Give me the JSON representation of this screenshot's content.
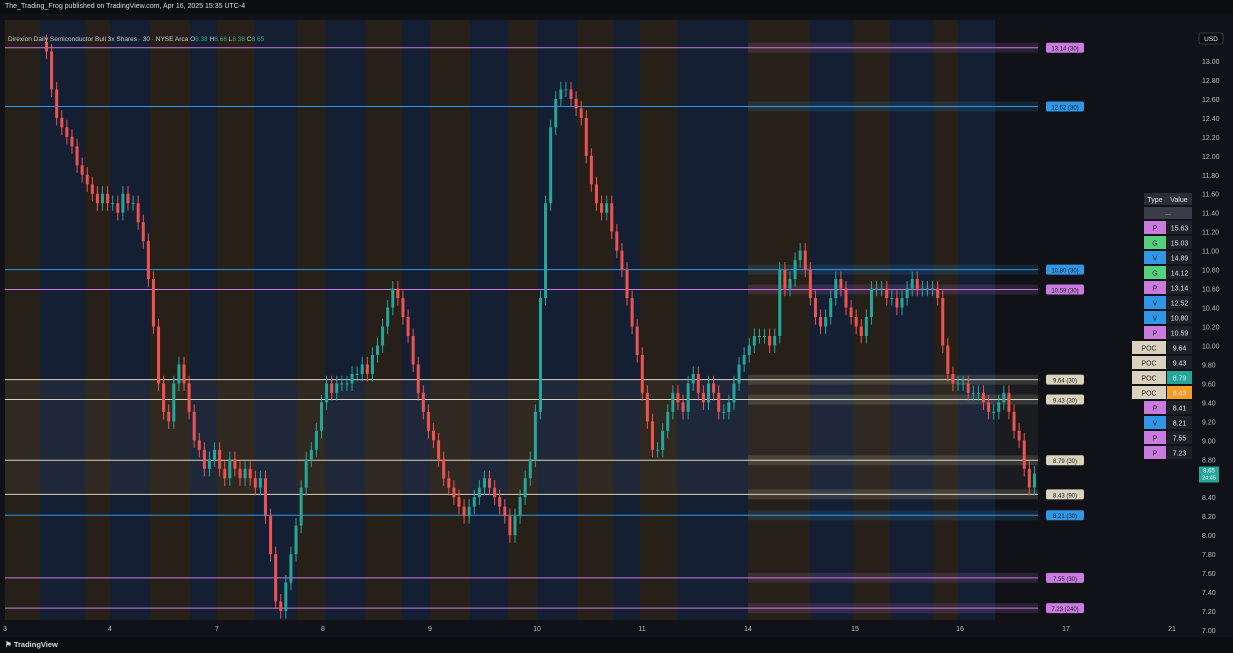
{
  "header": {
    "published": "The_Trading_Frog published on TradingView.com, Apr 16, 2025 15:35 UTC-4",
    "instrument": "Direxion Daily Semiconductor Bull 3x Shares · 30 · NYSE Arca",
    "ohlc": [
      {
        "k": "O",
        "v": "8.38"
      },
      {
        "k": "H",
        "v": "8.68"
      },
      {
        "k": "L",
        "v": "8.38"
      },
      {
        "k": "C",
        "v": "8.65"
      }
    ],
    "currency": "USD"
  },
  "footer": {
    "brand": "TradingView"
  },
  "colors": {
    "up": "#26a69a",
    "down": "#ef5350",
    "pivot": "#c97be0",
    "volume": "#2f97e6",
    "gap": "#55d07c",
    "poc": "#d9d3bd",
    "poc_hi_teal": "#26a69a",
    "poc_hi_orange": "#f59f26",
    "band_blue": "#1a2a4a",
    "band_orange": "#3a2c1c"
  },
  "chart_data": {
    "type": "candlestick",
    "y_axis": {
      "min": 7.0,
      "max": 13.2,
      "ticks": [
        "13.00",
        "12.80",
        "12.60",
        "12.40",
        "12.20",
        "12.00",
        "11.80",
        "11.60",
        "11.40",
        "11.20",
        "11.00",
        "10.80",
        "10.60",
        "10.40",
        "10.20",
        "10.00",
        "9.80",
        "9.60",
        "9.40",
        "9.20",
        "9.00",
        "8.80",
        "8.60",
        "8.40",
        "8.20",
        "8.00",
        "7.80",
        "7.60",
        "7.40",
        "7.20",
        "7.00"
      ]
    },
    "x_axis": {
      "ticks": [
        "3",
        "4",
        "7",
        "8",
        "9",
        "10",
        "11",
        "14",
        "15",
        "16",
        "17",
        "21"
      ]
    },
    "last_price": "8.65",
    "countdown": "24:45",
    "levels": [
      {
        "price": 13.14,
        "label": "13.14 (30)",
        "type": "P"
      },
      {
        "price": 12.52,
        "label": "12.52 (30)",
        "type": "V"
      },
      {
        "price": 10.8,
        "label": "10.80 (30)",
        "type": "V"
      },
      {
        "price": 10.59,
        "label": "10.59 (30)",
        "type": "P"
      },
      {
        "price": 9.64,
        "label": "9.64 (30)",
        "type": "POC"
      },
      {
        "price": 9.43,
        "label": "9.43 (30)",
        "type": "POC"
      },
      {
        "price": 8.79,
        "label": "8.79 (30)",
        "type": "POC"
      },
      {
        "price": 8.43,
        "label": "8.43 (90)",
        "type": "POC"
      },
      {
        "price": 8.21,
        "label": "8.21 (30)",
        "type": "V"
      },
      {
        "price": 7.55,
        "label": "7.55 (30)",
        "type": "P"
      },
      {
        "price": 7.23,
        "label": "7.23 (240)",
        "type": "P"
      }
    ],
    "closes": [
      13.1,
      12.7,
      12.4,
      12.3,
      12.2,
      12.1,
      11.9,
      11.8,
      11.7,
      11.6,
      11.5,
      11.6,
      11.5,
      11.5,
      11.4,
      11.6,
      11.5,
      11.5,
      11.3,
      11.1,
      10.7,
      10.2,
      9.6,
      9.3,
      9.2,
      9.6,
      9.8,
      9.6,
      9.3,
      9.0,
      8.9,
      8.7,
      8.8,
      8.9,
      8.7,
      8.6,
      8.8,
      8.7,
      8.6,
      8.7,
      8.6,
      8.5,
      8.6,
      8.2,
      7.8,
      7.3,
      7.2,
      7.5,
      7.8,
      8.1,
      8.5,
      8.8,
      8.9,
      9.1,
      9.4,
      9.6,
      9.5,
      9.6,
      9.6,
      9.6,
      9.7,
      9.7,
      9.8,
      9.7,
      9.9,
      10.0,
      10.2,
      10.4,
      10.6,
      10.5,
      10.3,
      10.1,
      9.8,
      9.5,
      9.3,
      9.1,
      9.0,
      8.8,
      8.6,
      8.5,
      8.4,
      8.3,
      8.2,
      8.3,
      8.4,
      8.5,
      8.6,
      8.5,
      8.4,
      8.3,
      8.2,
      8.0,
      8.2,
      8.4,
      8.6,
      8.8,
      9.3,
      10.5,
      11.5,
      12.3,
      12.6,
      12.7,
      12.7,
      12.6,
      12.5,
      12.4,
      12.0,
      11.7,
      11.5,
      11.4,
      11.5,
      11.2,
      11.0,
      10.8,
      10.5,
      10.2,
      9.9,
      9.5,
      9.2,
      8.9,
      8.9,
      9.1,
      9.3,
      9.5,
      9.4,
      9.3,
      9.6,
      9.7,
      9.5,
      9.4,
      9.6,
      9.5,
      9.3,
      9.3,
      9.4,
      9.6,
      9.8,
      9.9,
      10.0,
      10.1,
      10.1,
      10.1,
      10.0,
      10.1,
      10.8,
      10.6,
      10.7,
      10.9,
      11.0,
      10.8,
      10.5,
      10.3,
      10.2,
      10.3,
      10.5,
      10.7,
      10.6,
      10.4,
      10.3,
      10.2,
      10.1,
      10.3,
      10.6,
      10.6,
      10.6,
      10.5,
      10.5,
      10.4,
      10.5,
      10.6,
      10.7,
      10.6,
      10.6,
      10.6,
      10.6,
      10.5,
      10.0,
      9.7,
      9.6,
      9.6,
      9.6,
      9.5,
      9.5,
      9.5,
      9.4,
      9.3,
      9.3,
      9.4,
      9.5,
      9.3,
      9.1,
      9.0,
      8.7,
      8.5,
      8.65
    ]
  },
  "summary_table": {
    "headers": [
      "Type",
      "Value"
    ],
    "blank_row": "...",
    "rows": [
      {
        "type": "P",
        "value": "15.63"
      },
      {
        "type": "G",
        "value": "15.03"
      },
      {
        "type": "V",
        "value": "14.89"
      },
      {
        "type": "G",
        "value": "14.12"
      },
      {
        "type": "P",
        "value": "13.14"
      },
      {
        "type": "V",
        "value": "12.52"
      },
      {
        "type": "V",
        "value": "10.80"
      },
      {
        "type": "P",
        "value": "10.59"
      },
      {
        "type": "POC",
        "value": "9.64"
      },
      {
        "type": "POC",
        "value": "9.43"
      },
      {
        "type": "POC",
        "value": "8.79",
        "highlight": "teal"
      },
      {
        "type": "POC",
        "value": "8.43",
        "highlight": "orange"
      },
      {
        "type": "P",
        "value": "8.41"
      },
      {
        "type": "V",
        "value": "8.21"
      },
      {
        "type": "P",
        "value": "7.55"
      },
      {
        "type": "P",
        "value": "7.23"
      }
    ]
  }
}
